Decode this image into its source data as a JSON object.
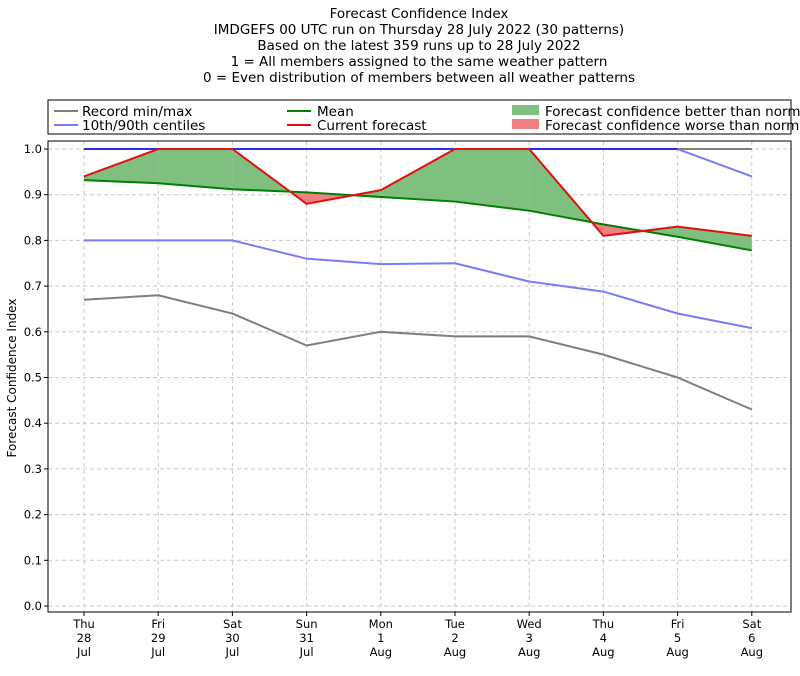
{
  "title_lines": [
    "Forecast Confidence Index",
    "IMDGEFS 00 UTC run on Thursday 28 July 2022 (30 patterns)",
    "Based on the latest 359 runs up to 28 July 2022",
    "1 = All members assigned to the same weather pattern",
    "0 = Even distribution of members between all weather patterns"
  ],
  "legend": [
    {
      "label": "Record min/max",
      "color": "#7f7f7f",
      "kind": "line"
    },
    {
      "label": "10th/90th centiles",
      "color": "#7b7bf5",
      "kind": "line"
    },
    {
      "label": "Mean",
      "color": "#007f00",
      "kind": "line"
    },
    {
      "label": "Current forecast",
      "color": "#e01010",
      "kind": "line"
    },
    {
      "label": "Forecast confidence better than normal",
      "color": "#7fbf7f",
      "kind": "patch"
    },
    {
      "label": "Forecast confidence worse than normal",
      "color": "#f08080",
      "kind": "patch"
    }
  ],
  "chart_data": {
    "type": "line",
    "ylabel": "Forecast Confidence Index",
    "ylim": [
      0.0,
      1.0
    ],
    "yticks": [
      "0.0",
      "0.1",
      "0.2",
      "0.3",
      "0.4",
      "0.5",
      "0.6",
      "0.7",
      "0.8",
      "0.9",
      "1.0"
    ],
    "grid": true,
    "legend_position": "top",
    "x": [
      [
        "Thu",
        "28",
        "Jul"
      ],
      [
        "Fri",
        "29",
        "Jul"
      ],
      [
        "Sat",
        "30",
        "Jul"
      ],
      [
        "Sun",
        "31",
        "Jul"
      ],
      [
        "Mon",
        "1",
        "Aug"
      ],
      [
        "Tue",
        "2",
        "Aug"
      ],
      [
        "Wed",
        "3",
        "Aug"
      ],
      [
        "Thu",
        "4",
        "Aug"
      ],
      [
        "Fri",
        "5",
        "Aug"
      ],
      [
        "Sat",
        "6",
        "Aug"
      ]
    ],
    "series": [
      {
        "name": "Record min/max",
        "role": "record_max",
        "color": "#7f7f7f",
        "values": [
          1.0,
          1.0,
          1.0,
          1.0,
          1.0,
          1.0,
          1.0,
          1.0,
          1.0,
          1.0
        ]
      },
      {
        "name": "Record min/max",
        "role": "record_min",
        "color": "#7f7f7f",
        "values": [
          0.67,
          0.68,
          0.64,
          0.57,
          0.6,
          0.59,
          0.59,
          0.55,
          0.5,
          0.43
        ]
      },
      {
        "name": "10th/90th centiles",
        "role": "p90",
        "color": "#7b7bf5",
        "values": [
          1.0,
          1.0,
          1.0,
          1.0,
          1.0,
          1.0,
          1.0,
          1.0,
          1.0,
          0.94
        ]
      },
      {
        "name": "10th/90th centiles",
        "role": "p10",
        "color": "#7b7bf5",
        "values": [
          0.8,
          0.8,
          0.8,
          0.76,
          0.748,
          0.75,
          0.71,
          0.688,
          0.64,
          0.608
        ]
      },
      {
        "name": "Mean",
        "role": "mean",
        "color": "#007f00",
        "values": [
          0.932,
          0.925,
          0.912,
          0.905,
          0.895,
          0.885,
          0.865,
          0.835,
          0.808,
          0.778
        ]
      },
      {
        "name": "Current forecast",
        "role": "current",
        "color": "#e01010",
        "values": [
          0.94,
          1.0,
          1.0,
          0.88,
          0.91,
          1.0,
          1.0,
          0.81,
          0.83,
          0.81
        ]
      }
    ],
    "fill_better_color": "#7fbf7f",
    "fill_worse_color": "#f08080",
    "overlap_line_color": "#2a2af0"
  }
}
